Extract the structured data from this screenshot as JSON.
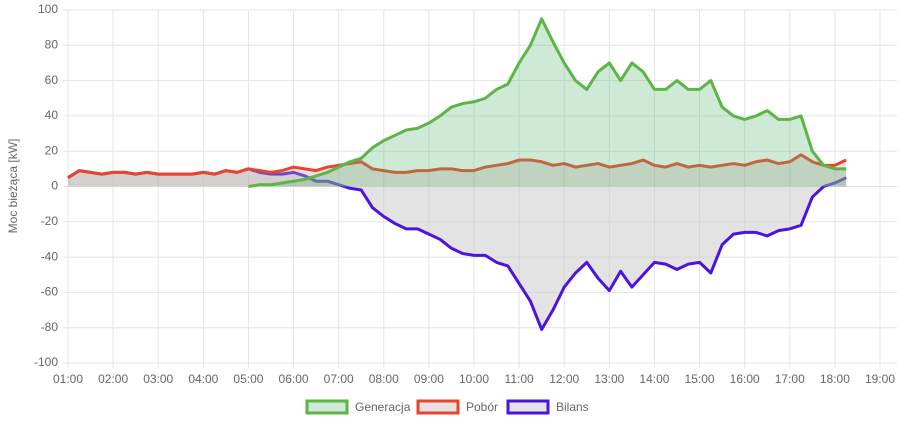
{
  "chart_data": {
    "type": "line",
    "y_label": "Moc bieżąca [kW]",
    "x": [
      1.0,
      1.25,
      1.5,
      1.75,
      2.0,
      2.25,
      2.5,
      2.75,
      3.0,
      3.25,
      3.5,
      3.75,
      4.0,
      4.25,
      4.5,
      4.75,
      5.0,
      5.25,
      5.5,
      5.75,
      6.0,
      6.25,
      6.5,
      6.75,
      7.0,
      7.25,
      7.5,
      7.75,
      8.0,
      8.25,
      8.5,
      8.75,
      9.0,
      9.25,
      9.5,
      9.75,
      10.0,
      10.25,
      10.5,
      10.75,
      11.0,
      11.25,
      11.5,
      11.75,
      12.0,
      12.25,
      12.5,
      12.75,
      13.0,
      13.25,
      13.5,
      13.75,
      14.0,
      14.25,
      14.5,
      14.75,
      15.0,
      15.25,
      15.5,
      15.75,
      16.0,
      16.25,
      16.5,
      16.75,
      17.0,
      17.25,
      17.5,
      17.75,
      18.0,
      18.25
    ],
    "series": [
      {
        "name": "Generacja",
        "color": "#5cb545",
        "fill": "rgba(92,181,120,0.3)",
        "values": [
          null,
          null,
          null,
          null,
          null,
          null,
          null,
          null,
          null,
          null,
          null,
          null,
          null,
          null,
          null,
          null,
          0,
          1,
          1,
          2,
          3,
          4,
          6,
          8,
          11,
          14,
          16,
          22,
          26,
          29,
          32,
          33,
          36,
          40,
          45,
          47,
          48,
          50,
          55,
          58,
          70,
          80,
          95,
          82,
          70,
          60,
          55,
          65,
          70,
          60,
          70,
          65,
          55,
          55,
          60,
          55,
          55,
          60,
          45,
          40,
          38,
          40,
          43,
          38,
          38,
          40,
          20,
          12,
          10,
          10
        ]
      },
      {
        "name": "Pobór",
        "color": "#e8452c",
        "fill": "rgba(190,170,170,0.35)",
        "values": [
          5,
          9,
          8,
          7,
          8,
          8,
          7,
          8,
          7,
          7,
          7,
          7,
          8,
          7,
          9,
          8,
          10,
          9,
          8,
          9,
          11,
          10,
          9,
          11,
          12,
          13,
          14,
          10,
          9,
          8,
          8,
          9,
          9,
          10,
          10,
          9,
          9,
          11,
          12,
          13,
          15,
          15,
          14,
          12,
          13,
          11,
          12,
          13,
          11,
          12,
          13,
          15,
          12,
          11,
          13,
          11,
          12,
          11,
          12,
          13,
          12,
          14,
          15,
          13,
          14,
          18,
          14,
          12,
          12,
          15
        ]
      },
      {
        "name": "Bilans",
        "color": "#4b14e0",
        "fill": "rgba(200,200,200,0.5)",
        "values": [
          5,
          9,
          8,
          7,
          8,
          8,
          7,
          8,
          7,
          7,
          7,
          7,
          8,
          7,
          9,
          8,
          10,
          8,
          7,
          7,
          8,
          6,
          3,
          3,
          1,
          -1,
          -2,
          -12,
          -17,
          -21,
          -24,
          -24,
          -27,
          -30,
          -35,
          -38,
          -39,
          -39,
          -43,
          -45,
          -55,
          -65,
          -81,
          -70,
          -57,
          -49,
          -43,
          -52,
          -59,
          -48,
          -57,
          -50,
          -43,
          -44,
          -47,
          -44,
          -43,
          -49,
          -33,
          -27,
          -26,
          -26,
          -28,
          -25,
          -24,
          -22,
          -6,
          0,
          2,
          5
        ]
      }
    ],
    "xlim": [
      1,
      19.4
    ],
    "xticks": [
      {
        "value": 1,
        "label": "01:00"
      },
      {
        "value": 2,
        "label": "02:00"
      },
      {
        "value": 3,
        "label": "03:00"
      },
      {
        "value": 4,
        "label": "04:00"
      },
      {
        "value": 5,
        "label": "05:00"
      },
      {
        "value": 6,
        "label": "06:00"
      },
      {
        "value": 7,
        "label": "07:00"
      },
      {
        "value": 8,
        "label": "08:00"
      },
      {
        "value": 9,
        "label": "09:00"
      },
      {
        "value": 10,
        "label": "10:00"
      },
      {
        "value": 11,
        "label": "11:00"
      },
      {
        "value": 12,
        "label": "12:00"
      },
      {
        "value": 13,
        "label": "13:00"
      },
      {
        "value": 14,
        "label": "14:00"
      },
      {
        "value": 15,
        "label": "15:00"
      },
      {
        "value": 16,
        "label": "16:00"
      },
      {
        "value": 17,
        "label": "17:00"
      },
      {
        "value": 18,
        "label": "18:00"
      },
      {
        "value": 19,
        "label": "19:00"
      }
    ],
    "ylim": [
      -100,
      100
    ],
    "yticks": [
      -100,
      -80,
      -60,
      -40,
      -20,
      0,
      20,
      40,
      60,
      80,
      100
    ],
    "grid": true
  }
}
